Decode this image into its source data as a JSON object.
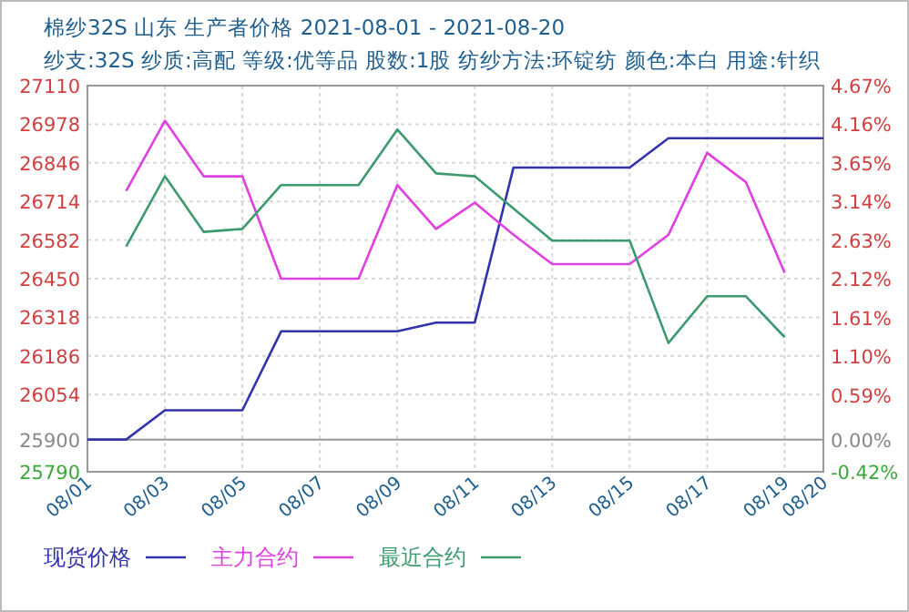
{
  "chart_data": {
    "type": "line",
    "title": "棉纱32S 山东 生产者价格 2021-08-01 - 2021-08-20",
    "subtitle": "纱支:32S 纱质:高配 等级:优等品 股数:1股 纺纱方法:环锭纺 颜色:本白 用途:针织",
    "x": [
      "2021-08-01",
      "2021-08-02",
      "2021-08-03",
      "2021-08-04",
      "2021-08-05",
      "2021-08-06",
      "2021-08-07",
      "2021-08-08",
      "2021-08-09",
      "2021-08-10",
      "2021-08-11",
      "2021-08-12",
      "2021-08-13",
      "2021-08-14",
      "2021-08-15",
      "2021-08-16",
      "2021-08-17",
      "2021-08-18",
      "2021-08-19",
      "2021-08-20"
    ],
    "series": [
      {
        "name": "现货价格",
        "color": "#3333aa",
        "values": [
          25900,
          25900,
          26000,
          26000,
          26000,
          26270,
          26270,
          26270,
          26270,
          26300,
          26300,
          26830,
          26830,
          26830,
          26830,
          26930,
          26930,
          26930,
          26930,
          26930
        ]
      },
      {
        "name": "主力合约",
        "color": "#e040e0",
        "values": [
          null,
          26750,
          26990,
          26800,
          26800,
          26450,
          26450,
          26450,
          26770,
          26620,
          26710,
          26600,
          26500,
          26500,
          26500,
          26600,
          26880,
          26780,
          26470,
          null
        ]
      },
      {
        "name": "最近合约",
        "color": "#3d9a6e",
        "values": [
          null,
          26560,
          26800,
          26610,
          26620,
          26770,
          26770,
          26770,
          26960,
          26810,
          26800,
          26690,
          26580,
          26580,
          26580,
          26230,
          26390,
          26390,
          26250,
          null
        ]
      }
    ],
    "xlim": [
      "2021-08-01",
      "2021-08-20"
    ],
    "xticks": [
      {
        "value": "2021-08-01",
        "label": "08/01"
      },
      {
        "value": "2021-08-03",
        "label": "08/03"
      },
      {
        "value": "2021-08-05",
        "label": "08/05"
      },
      {
        "value": "2021-08-07",
        "label": "08/07"
      },
      {
        "value": "2021-08-09",
        "label": "08/09"
      },
      {
        "value": "2021-08-11",
        "label": "08/11"
      },
      {
        "value": "2021-08-13",
        "label": "08/13"
      },
      {
        "value": "2021-08-15",
        "label": "08/15"
      },
      {
        "value": "2021-08-17",
        "label": "08/17"
      },
      {
        "value": "2021-08-19",
        "label": "08/19"
      },
      {
        "value": "2021-08-20",
        "label": "08/20"
      }
    ],
    "ylim": [
      25790,
      27110
    ],
    "yticks": [
      25790,
      25900,
      26054,
      26186,
      26318,
      26450,
      26582,
      26714,
      26846,
      26978,
      27110
    ],
    "y2lim": [
      -0.42,
      4.67
    ],
    "y2ticks": [
      {
        "value": -0.42,
        "label": "-0.42%"
      },
      {
        "value": 0,
        "label": "0.00%"
      },
      {
        "value": 0.59,
        "label": "0.59%"
      },
      {
        "value": 1.1,
        "label": "1.10%"
      },
      {
        "value": 1.61,
        "label": "1.61%"
      },
      {
        "value": 2.12,
        "label": "2.12%"
      },
      {
        "value": 2.63,
        "label": "2.63%"
      },
      {
        "value": 3.14,
        "label": "3.14%"
      },
      {
        "value": 3.65,
        "label": "3.65%"
      },
      {
        "value": 4.16,
        "label": "4.16%"
      },
      {
        "value": 4.67,
        "label": "4.67%"
      }
    ],
    "ref_lines": [
      {
        "axis": "y",
        "value": 25900,
        "color": "#999999"
      }
    ],
    "grid": true,
    "legend": "bottom"
  }
}
